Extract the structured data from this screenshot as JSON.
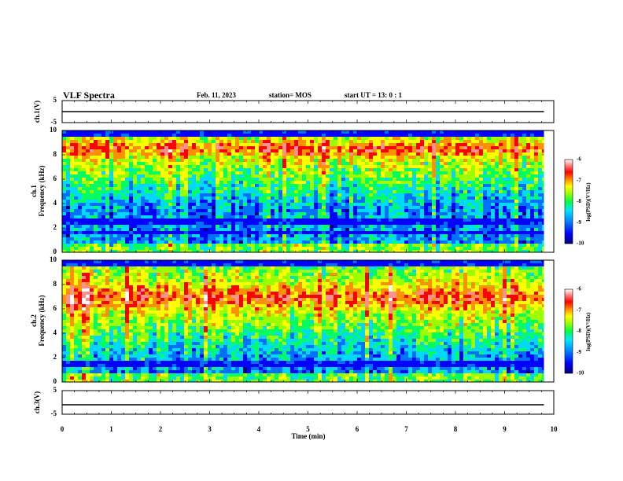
{
  "header": {
    "title": "VLF Spectra",
    "date": "Feb. 11, 2023",
    "station": "station= MOS",
    "start_ut": "start  UT =   13: 0   : 1"
  },
  "chart_data": {
    "type": "heatmap",
    "title": "VLF Spectra",
    "x": {
      "label": "Time  (min)",
      "range": [
        0,
        10
      ],
      "ticks": [
        0,
        1,
        2,
        3,
        4,
        5,
        6,
        7,
        8,
        9,
        10
      ],
      "tick_labels": [
        "0",
        "1",
        "2",
        "3",
        "4",
        "5",
        "6",
        "7",
        "8",
        "9",
        "10"
      ],
      "data_end": 9.8
    },
    "panels": [
      {
        "id": "ch1-voltage",
        "type": "line",
        "ylabel": "ch.1(V)",
        "ylim": [
          -5,
          5
        ],
        "tick_labels": [
          "5",
          "-5"
        ],
        "trace_level": 0
      },
      {
        "id": "ch1-spectrogram",
        "type": "heatmap",
        "ylabel": "ch.1\nFrequency  (kHz)",
        "ylabel_line1": "ch.1",
        "ylabel_line2": "Frequency  (kHz)",
        "ylim": [
          0,
          10
        ],
        "tick_labels": [
          "0",
          "2",
          "4",
          "6",
          "8",
          "10"
        ],
        "intense_band_khz": [
          7.8,
          9.4
        ],
        "dark_bands_khz": [
          [
            9.6,
            10
          ],
          [
            2.3,
            2.8
          ],
          [
            1.7,
            1.9
          ]
        ],
        "colorbar": {
          "range": [
            -10,
            -6
          ],
          "tick_labels": [
            "-6",
            "-7",
            "-8",
            "-9",
            "-10"
          ],
          "label": "log(PSD)(V²/Hz)"
        }
      },
      {
        "id": "ch2-spectrogram",
        "type": "heatmap",
        "ylabel": "ch.2\nFrequency  (kHz)",
        "ylabel_line1": "ch.2",
        "ylabel_line2": "Frequency  (kHz)",
        "ylim": [
          0,
          10
        ],
        "tick_labels": [
          "0",
          "2",
          "4",
          "6",
          "8",
          "10"
        ],
        "intense_band_khz": [
          5.8,
          8.4
        ],
        "dark_bands_khz": [
          [
            9.5,
            10
          ],
          [
            1.4,
            1.9
          ]
        ],
        "colorbar": {
          "range": [
            -10,
            -6
          ],
          "tick_labels": [
            "-6",
            "-7",
            "-8",
            "-9",
            "-10"
          ],
          "label": "log(PSD)(V²/Hz)"
        }
      },
      {
        "id": "ch3-voltage",
        "type": "line",
        "ylabel": "ch.3(V)",
        "ylim": [
          -5,
          5
        ],
        "tick_labels": [
          "5",
          "-5"
        ],
        "trace_level": -1
      }
    ]
  },
  "colors": {
    "scale": [
      "#00007a",
      "#0000ff",
      "#0070ff",
      "#00d8ff",
      "#00ff60",
      "#9cff00",
      "#ffff00",
      "#ff9000",
      "#ff0000",
      "#ff9090",
      "#ffffff"
    ],
    "axis": "#000000",
    "background": "#ffffff"
  }
}
